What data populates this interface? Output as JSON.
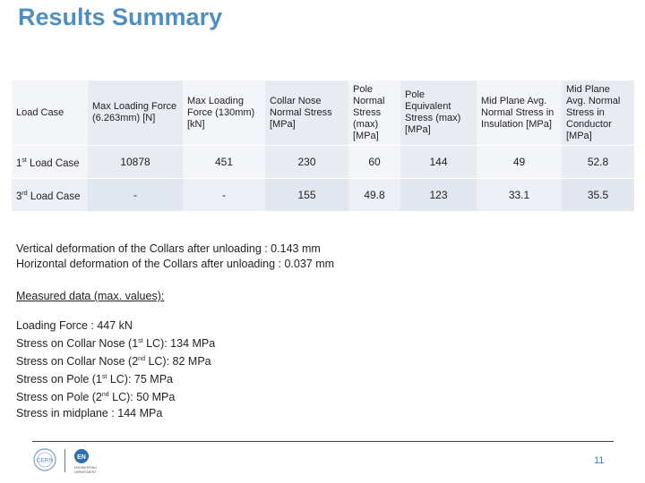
{
  "page": {
    "title": "Results Summary",
    "page_number": "11"
  },
  "table": {
    "headers": {
      "load_case": "Load Case",
      "max_force_6": "Max Loading Force (6.263mm) [N]",
      "max_force_130": "Max Loading Force (130mm) [kN]",
      "collar_nose": "Collar Nose Normal Stress [MPa]",
      "pole_normal": "Pole Normal Stress (max) [MPa]",
      "pole_equiv": "Pole Equivalent Stress (max) [MPa]",
      "midplane_insul": "Mid Plane Avg. Normal Stress in Insulation [MPa]",
      "midplane_cond": "Mid Plane Avg. Normal Stress in Conductor [MPa]"
    },
    "rows": [
      {
        "num": "1",
        "sup": "st",
        "rest": " Load Case",
        "cells": [
          "10878",
          "451",
          "230",
          "60",
          "144",
          "49",
          "52.8"
        ]
      },
      {
        "num": "3",
        "sup": "rd",
        "rest": " Load Case",
        "cells": [
          "-",
          "-",
          "155",
          "49.8",
          "123",
          "33.1",
          "35.5"
        ]
      }
    ]
  },
  "deformation": {
    "vertical": "Vertical deformation of the Collars after unloading : 0.143 mm",
    "horizontal": "Horizontal deformation of the Collars after unloading : 0.037 mm"
  },
  "measured": {
    "heading": "Measured data (max. values):",
    "loading_force": "Loading Force : 447 kN",
    "collar_nose_1_a": "Stress on Collar Nose (1",
    "collar_nose_1_sup": "st",
    "collar_nose_1_b": " LC):  134 MPa",
    "collar_nose_2_a": "Stress on Collar Nose (2",
    "collar_nose_2_sup": "nd",
    "collar_nose_2_b": " LC):  82 MPa",
    "pole_1_a": "Stress on Pole (1",
    "pole_1_sup": "st",
    "pole_1_b": " LC):  75 MPa",
    "pole_2_a": "Stress on Pole (2",
    "pole_2_sup": "nd",
    "pole_2_b": " LC):  50 MPa",
    "midplane": "Stress in midplane : 144 MPa"
  },
  "logos": {
    "cern": "CERN",
    "en": "EN",
    "en_sub_1": "ENGINEERING",
    "en_sub_2": "DEPARTMENT"
  },
  "colors": {
    "title": "#4f8fbf",
    "page_number": "#3a7bd5",
    "table_header_bg": "#f3f5f9",
    "table_shade_bg": "#e8ebf2"
  }
}
